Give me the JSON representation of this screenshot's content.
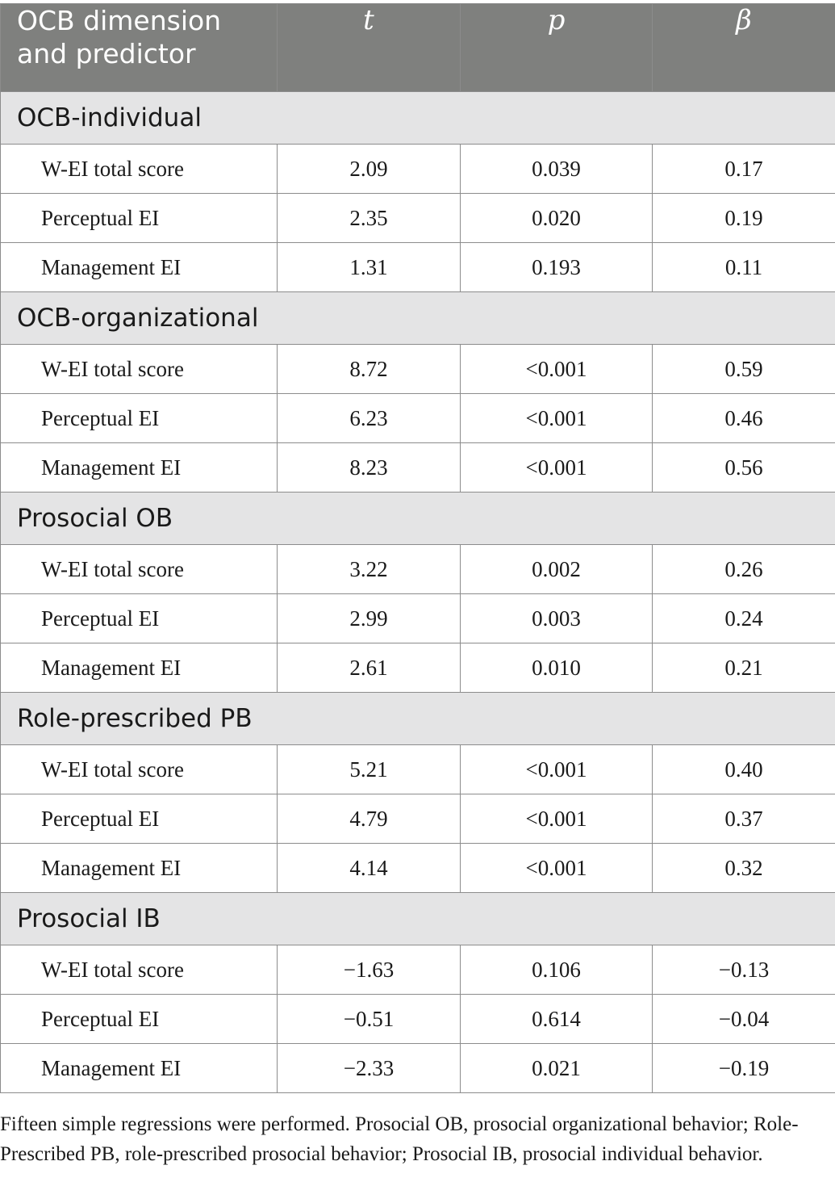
{
  "table": {
    "headers": [
      "OCB dimension and predictor",
      "t",
      "p",
      "β"
    ],
    "groups": [
      {
        "name": "OCB-individual",
        "rows": [
          {
            "predictor": "W-EI total score",
            "t": "2.09",
            "p": "0.039",
            "beta": "0.17"
          },
          {
            "predictor": "Perceptual EI",
            "t": "2.35",
            "p": "0.020",
            "beta": "0.19"
          },
          {
            "predictor": "Management EI",
            "t": "1.31",
            "p": "0.193",
            "beta": "0.11"
          }
        ]
      },
      {
        "name": "OCB-organizational",
        "rows": [
          {
            "predictor": "W-EI total score",
            "t": "8.72",
            "p": "<0.001",
            "beta": "0.59"
          },
          {
            "predictor": "Perceptual EI",
            "t": "6.23",
            "p": "<0.001",
            "beta": "0.46"
          },
          {
            "predictor": "Management EI",
            "t": "8.23",
            "p": "<0.001",
            "beta": "0.56"
          }
        ]
      },
      {
        "name": "Prosocial OB",
        "rows": [
          {
            "predictor": "W-EI total score",
            "t": "3.22",
            "p": "0.002",
            "beta": "0.26"
          },
          {
            "predictor": "Perceptual EI",
            "t": "2.99",
            "p": "0.003",
            "beta": "0.24"
          },
          {
            "predictor": "Management EI",
            "t": "2.61",
            "p": "0.010",
            "beta": "0.21"
          }
        ]
      },
      {
        "name": "Role-prescribed PB",
        "rows": [
          {
            "predictor": "W-EI total score",
            "t": "5.21",
            "p": "<0.001",
            "beta": "0.40"
          },
          {
            "predictor": "Perceptual EI",
            "t": "4.79",
            "p": "<0.001",
            "beta": "0.37"
          },
          {
            "predictor": "Management EI",
            "t": "4.14",
            "p": "<0.001",
            "beta": "0.32"
          }
        ]
      },
      {
        "name": "Prosocial IB",
        "rows": [
          {
            "predictor": "W-EI total score",
            "t": "−1.63",
            "p": "0.106",
            "beta": "−0.13"
          },
          {
            "predictor": "Perceptual EI",
            "t": "−0.51",
            "p": "0.614",
            "beta": "−0.04"
          },
          {
            "predictor": "Management EI",
            "t": "−2.33",
            "p": "0.021",
            "beta": "−0.19"
          }
        ]
      }
    ]
  },
  "footnote": "Fifteen simple regressions were performed. Prosocial OB, prosocial organizational behavior; Role-Prescribed PB, role-prescribed prosocial behavior; Prosocial IB, prosocial individual behavior."
}
